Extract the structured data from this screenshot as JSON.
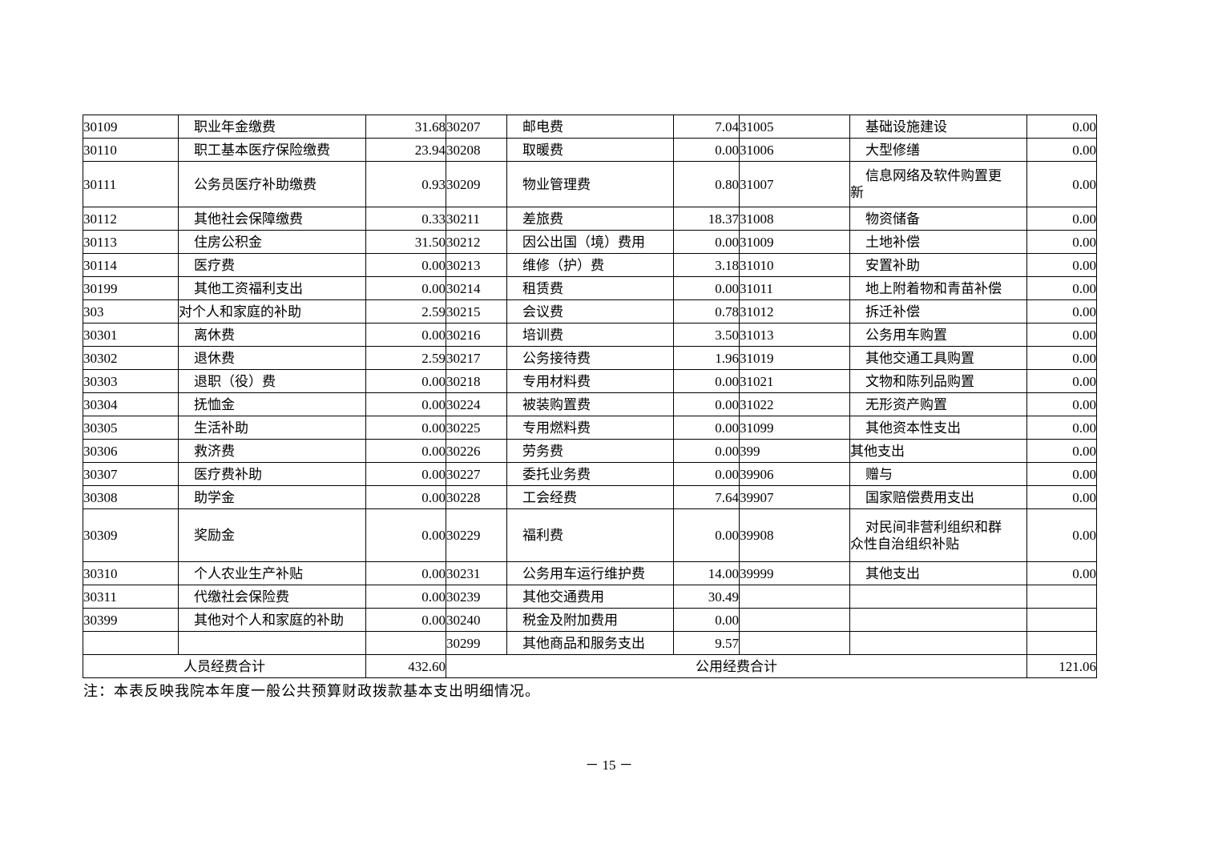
{
  "table": {
    "rows": [
      {
        "left": {
          "code": "30109",
          "name": "职业年金缴费",
          "value": "31.68",
          "child": true
        },
        "mid": {
          "code": "30207",
          "name": "邮电费",
          "value": "7.04",
          "child": true
        },
        "right": {
          "code": "31005",
          "name": "基础设施建设",
          "value": "0.00",
          "child": true
        }
      },
      {
        "left": {
          "code": "30110",
          "name": "职工基本医疗保险缴费",
          "value": "23.94",
          "child": true
        },
        "mid": {
          "code": "30208",
          "name": "取暖费",
          "value": "0.00",
          "child": true
        },
        "right": {
          "code": "31006",
          "name": "大型修缮",
          "value": "0.00",
          "child": true
        }
      },
      {
        "left": {
          "code": "30111",
          "name": "公务员医疗补助缴费",
          "value": "0.93",
          "child": true
        },
        "mid": {
          "code": "30209",
          "name": "物业管理费",
          "value": "0.80",
          "child": true
        },
        "right": {
          "code": "31007",
          "name": "信息网络及软件购置更\n新",
          "value": "0.00",
          "child": true
        }
      },
      {
        "left": {
          "code": "30112",
          "name": "其他社会保障缴费",
          "value": "0.33",
          "child": true
        },
        "mid": {
          "code": "30211",
          "name": "差旅费",
          "value": "18.37",
          "child": true
        },
        "right": {
          "code": "31008",
          "name": "物资储备",
          "value": "0.00",
          "child": true
        }
      },
      {
        "left": {
          "code": "30113",
          "name": "住房公积金",
          "value": "31.50",
          "child": true
        },
        "mid": {
          "code": "30212",
          "name": "因公出国（境）费用",
          "value": "0.00",
          "child": true
        },
        "right": {
          "code": "31009",
          "name": "土地补偿",
          "value": "0.00",
          "child": true
        }
      },
      {
        "left": {
          "code": "30114",
          "name": "医疗费",
          "value": "0.00",
          "child": true
        },
        "mid": {
          "code": "30213",
          "name": "维修（护）费",
          "value": "3.18",
          "child": true
        },
        "right": {
          "code": "31010",
          "name": "安置补助",
          "value": "0.00",
          "child": true
        }
      },
      {
        "left": {
          "code": "30199",
          "name": "其他工资福利支出",
          "value": "0.00",
          "child": true
        },
        "mid": {
          "code": "30214",
          "name": "租赁费",
          "value": "0.00",
          "child": true
        },
        "right": {
          "code": "31011",
          "name": "地上附着物和青苗补偿",
          "value": "0.00",
          "child": true
        }
      },
      {
        "left": {
          "code": "303",
          "name": "对个人和家庭的补助",
          "value": "2.59",
          "child": false
        },
        "mid": {
          "code": "30215",
          "name": "会议费",
          "value": "0.78",
          "child": true
        },
        "right": {
          "code": "31012",
          "name": "拆迁补偿",
          "value": "0.00",
          "child": true
        }
      },
      {
        "left": {
          "code": "30301",
          "name": "离休费",
          "value": "0.00",
          "child": true
        },
        "mid": {
          "code": "30216",
          "name": "培训费",
          "value": "3.50",
          "child": true
        },
        "right": {
          "code": "31013",
          "name": "公务用车购置",
          "value": "0.00",
          "child": true
        }
      },
      {
        "left": {
          "code": "30302",
          "name": "退休费",
          "value": "2.59",
          "child": true
        },
        "mid": {
          "code": "30217",
          "name": "公务接待费",
          "value": "1.96",
          "child": true
        },
        "right": {
          "code": "31019",
          "name": "其他交通工具购置",
          "value": "0.00",
          "child": true
        }
      },
      {
        "left": {
          "code": "30303",
          "name": "退职（役）费",
          "value": "0.00",
          "child": true
        },
        "mid": {
          "code": "30218",
          "name": "专用材料费",
          "value": "0.00",
          "child": true
        },
        "right": {
          "code": "31021",
          "name": "文物和陈列品购置",
          "value": "0.00",
          "child": true
        }
      },
      {
        "left": {
          "code": "30304",
          "name": "抚恤金",
          "value": "0.00",
          "child": true
        },
        "mid": {
          "code": "30224",
          "name": "被装购置费",
          "value": "0.00",
          "child": true
        },
        "right": {
          "code": "31022",
          "name": "无形资产购置",
          "value": "0.00",
          "child": true
        }
      },
      {
        "left": {
          "code": "30305",
          "name": "生活补助",
          "value": "0.00",
          "child": true
        },
        "mid": {
          "code": "30225",
          "name": "专用燃料费",
          "value": "0.00",
          "child": true
        },
        "right": {
          "code": "31099",
          "name": "其他资本性支出",
          "value": "0.00",
          "child": true
        }
      },
      {
        "left": {
          "code": "30306",
          "name": "救济费",
          "value": "0.00",
          "child": true
        },
        "mid": {
          "code": "30226",
          "name": "劳务费",
          "value": "0.00",
          "child": true
        },
        "right": {
          "code": "399",
          "name": "其他支出",
          "value": "0.00",
          "child": false
        }
      },
      {
        "left": {
          "code": "30307",
          "name": "医疗费补助",
          "value": "0.00",
          "child": true
        },
        "mid": {
          "code": "30227",
          "name": "委托业务费",
          "value": "0.00",
          "child": true
        },
        "right": {
          "code": "39906",
          "name": "赠与",
          "value": "0.00",
          "child": true
        }
      },
      {
        "left": {
          "code": "30308",
          "name": "助学金",
          "value": "0.00",
          "child": true
        },
        "mid": {
          "code": "30228",
          "name": "工会经费",
          "value": "7.64",
          "child": true
        },
        "right": {
          "code": "39907",
          "name": "国家赔偿费用支出",
          "value": "0.00",
          "child": true
        }
      },
      {
        "left": {
          "code": "30309",
          "name": "奖励金",
          "value": "0.00",
          "child": true
        },
        "mid": {
          "code": "30229",
          "name": "福利费",
          "value": "0.00",
          "child": true
        },
        "right": {
          "code": "39908",
          "name": "对民间非营利组织和群\n众性自治组织补贴",
          "value": "0.00",
          "child": true
        }
      },
      {
        "left": {
          "code": "30310",
          "name": "个人农业生产补贴",
          "value": "0.00",
          "child": true
        },
        "mid": {
          "code": "30231",
          "name": "公务用车运行维护费",
          "value": "14.00",
          "child": true
        },
        "right": {
          "code": "39999",
          "name": "其他支出",
          "value": "0.00",
          "child": true
        }
      },
      {
        "left": {
          "code": "30311",
          "name": "代缴社会保险费",
          "value": "0.00",
          "child": true
        },
        "mid": {
          "code": "30239",
          "name": "其他交通费用",
          "value": "30.49",
          "child": true
        },
        "right": {
          "code": "",
          "name": "",
          "value": "",
          "child": false
        }
      },
      {
        "left": {
          "code": "30399",
          "name": "其他对个人和家庭的补助",
          "value": "0.00",
          "child": true
        },
        "mid": {
          "code": "30240",
          "name": "税金及附加费用",
          "value": "0.00",
          "child": true
        },
        "right": {
          "code": "",
          "name": "",
          "value": "",
          "child": false
        }
      },
      {
        "left": {
          "code": "",
          "name": "",
          "value": "",
          "child": false
        },
        "mid": {
          "code": "30299",
          "name": "其他商品和服务支出",
          "value": "9.57",
          "child": true
        },
        "right": {
          "code": "",
          "name": "",
          "value": "",
          "child": false
        }
      }
    ],
    "totals": {
      "personnel_label": "人员经费合计",
      "personnel_value": "432.60",
      "public_label": "公用经费合计",
      "public_value": "121.06"
    }
  },
  "note": "注：本表反映我院本年度一般公共预算财政拨款基本支出明细情况。",
  "page_number": "－ 15 －"
}
